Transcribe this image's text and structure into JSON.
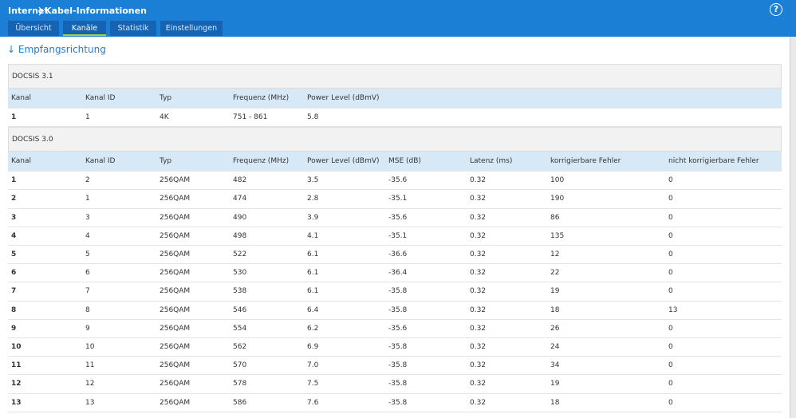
{
  "header": {
    "breadcrumb": [
      "Internet",
      "Kabel-Informationen"
    ],
    "help": "?"
  },
  "tabs": [
    "Übersicht",
    "Kanäle",
    "Statistik",
    "Einstellungen"
  ],
  "active_tab": 1,
  "section": "↓ Empfangsrichtung",
  "tables": [
    {
      "title": "DOCSIS 3.1",
      "columns": [
        "Kanal",
        "Kanal ID",
        "Typ",
        "Frequenz (MHz)",
        "Power Level (dBmV)"
      ],
      "rows": [
        [
          "1",
          "1",
          "4K",
          "751 - 861",
          "5.8"
        ]
      ]
    },
    {
      "title": "DOCSIS 3.0",
      "columns": [
        "Kanal",
        "Kanal ID",
        "Typ",
        "Frequenz (MHz)",
        "Power Level (dBmV)",
        "MSE (dB)",
        "Latenz (ms)",
        "korrigierbare Fehler",
        "nicht korrigierbare Fehler"
      ],
      "rows": [
        [
          "1",
          "2",
          "256QAM",
          "482",
          "3.5",
          "-35.6",
          "0.32",
          "100",
          "0"
        ],
        [
          "2",
          "1",
          "256QAM",
          "474",
          "2.8",
          "-35.1",
          "0.32",
          "190",
          "0"
        ],
        [
          "3",
          "3",
          "256QAM",
          "490",
          "3.9",
          "-35.6",
          "0.32",
          "86",
          "0"
        ],
        [
          "4",
          "4",
          "256QAM",
          "498",
          "4.1",
          "-35.1",
          "0.32",
          "135",
          "0"
        ],
        [
          "5",
          "5",
          "256QAM",
          "522",
          "6.1",
          "-36.6",
          "0.32",
          "12",
          "0"
        ],
        [
          "6",
          "6",
          "256QAM",
          "530",
          "6.1",
          "-36.4",
          "0.32",
          "22",
          "0"
        ],
        [
          "7",
          "7",
          "256QAM",
          "538",
          "6.1",
          "-35.8",
          "0.32",
          "19",
          "0"
        ],
        [
          "8",
          "8",
          "256QAM",
          "546",
          "6.4",
          "-35.8",
          "0.32",
          "18",
          "13"
        ],
        [
          "9",
          "9",
          "256QAM",
          "554",
          "6.2",
          "-35.6",
          "0.32",
          "26",
          "0"
        ],
        [
          "10",
          "10",
          "256QAM",
          "562",
          "6.9",
          "-35.8",
          "0.32",
          "24",
          "0"
        ],
        [
          "11",
          "11",
          "256QAM",
          "570",
          "7.0",
          "-35.8",
          "0.32",
          "34",
          "0"
        ],
        [
          "12",
          "12",
          "256QAM",
          "578",
          "7.5",
          "-35.8",
          "0.32",
          "19",
          "0"
        ],
        [
          "13",
          "13",
          "256QAM",
          "586",
          "7.6",
          "-35.8",
          "0.32",
          "18",
          "0"
        ]
      ]
    }
  ]
}
